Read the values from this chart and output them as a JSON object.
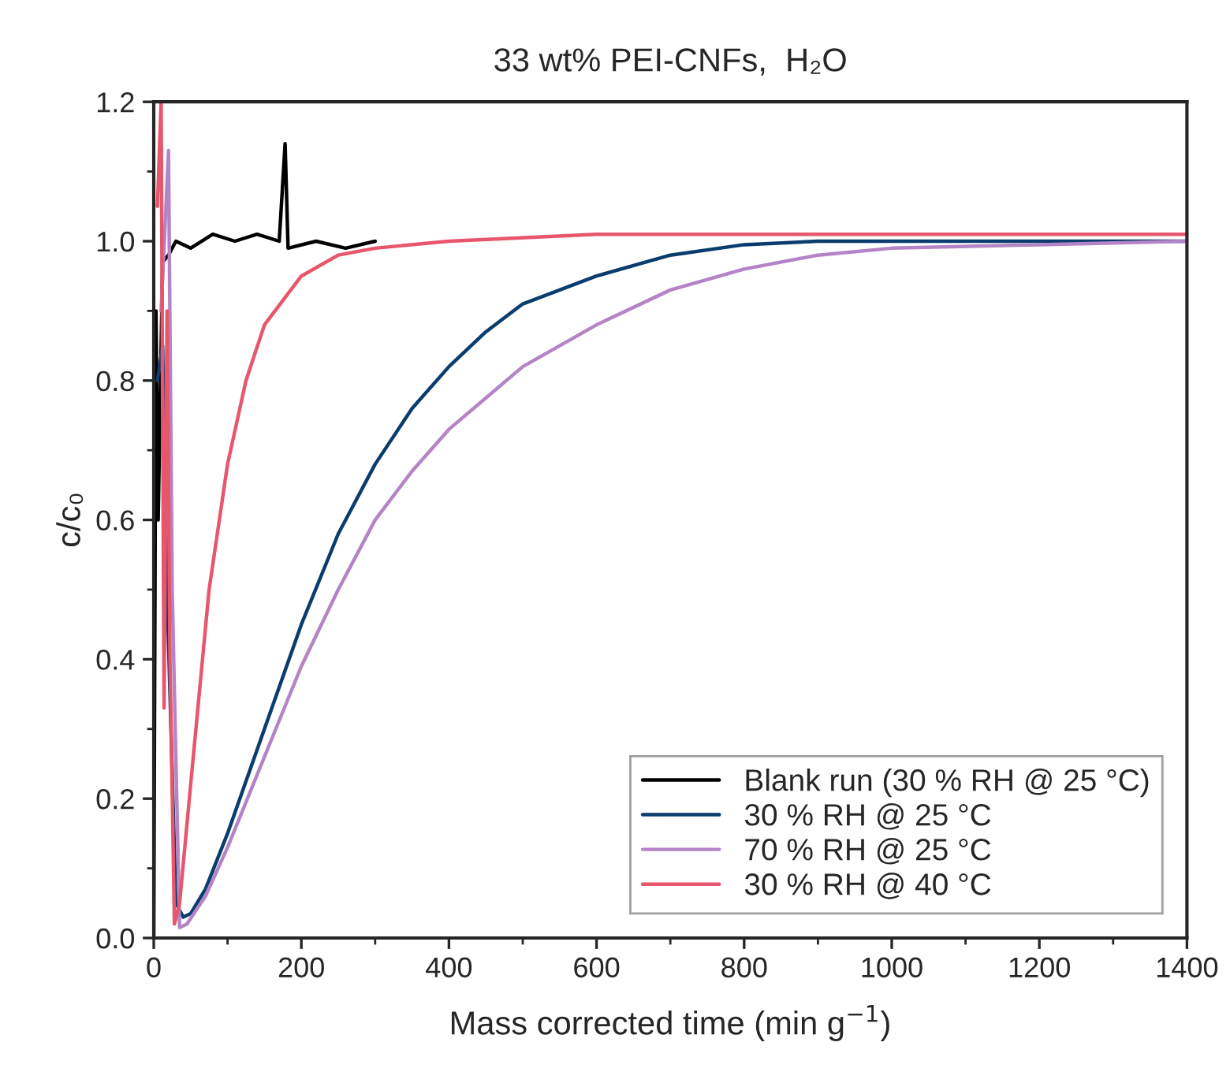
{
  "chart_data": {
    "type": "line",
    "title": "33 wt% PEI-CNFs,  H₂O",
    "xlabel": "Mass corrected time (min g$^{−1}$)",
    "ylabel": "c/c₀",
    "xlim": [
      0,
      1400
    ],
    "xticks": [
      0,
      200,
      400,
      600,
      800,
      1000,
      1200,
      1400
    ],
    "ylim": [
      0,
      1.2
    ],
    "yticks": [
      {
        "value": 0,
        "label": "0.0"
      },
      0.2,
      0.4,
      0.6,
      0.8,
      {
        "value": 1,
        "label": "1.0"
      },
      1.2
    ],
    "grid": false,
    "legend": "bottom right",
    "marker": "none",
    "line_style": "solid",
    "series": [
      {
        "name": "Blank run (30 % RH @ 25 °C)",
        "color": "#000000",
        "x": [
          0,
          3,
          6,
          12,
          20,
          30,
          50,
          80,
          110,
          140,
          170,
          178,
          182,
          220,
          260,
          300
        ],
        "values": [
          0.0,
          0.9,
          0.6,
          0.97,
          0.98,
          1.0,
          0.99,
          1.01,
          1.0,
          1.01,
          1.0,
          1.14,
          0.99,
          1.0,
          0.99,
          1.0
        ]
      },
      {
        "name": "30 % RH @ 25 °C",
        "color": "#0b3c6e",
        "x": [
          5,
          12,
          18,
          30,
          40,
          50,
          70,
          100,
          150,
          200,
          250,
          300,
          350,
          400,
          450,
          500,
          600,
          700,
          800,
          900,
          1000,
          1400
        ],
        "values": [
          0.8,
          0.85,
          0.5,
          0.05,
          0.03,
          0.035,
          0.07,
          0.15,
          0.3,
          0.45,
          0.58,
          0.68,
          0.76,
          0.82,
          0.87,
          0.91,
          0.95,
          0.98,
          0.995,
          1.0,
          1.0,
          1.0
        ]
      },
      {
        "name": "70 % RH @ 25 °C",
        "color": "#b584c6",
        "x": [
          10,
          20,
          25,
          35,
          45,
          70,
          100,
          150,
          200,
          250,
          300,
          350,
          400,
          500,
          600,
          700,
          800,
          900,
          1000,
          1200,
          1400
        ],
        "values": [
          0.9,
          1.13,
          0.5,
          0.015,
          0.02,
          0.06,
          0.13,
          0.26,
          0.39,
          0.5,
          0.6,
          0.67,
          0.73,
          0.82,
          0.88,
          0.93,
          0.96,
          0.98,
          0.99,
          0.995,
          1.0
        ]
      },
      {
        "name": "30 % RH @ 40 °C",
        "color": "#e8566c",
        "x": [
          5,
          10,
          14,
          18,
          22,
          28,
          35,
          50,
          75,
          100,
          125,
          150,
          200,
          250,
          300,
          400,
          600,
          1400
        ],
        "values": [
          1.05,
          1.2,
          0.33,
          0.9,
          0.4,
          0.02,
          0.05,
          0.22,
          0.5,
          0.68,
          0.8,
          0.88,
          0.95,
          0.98,
          0.99,
          1.0,
          1.01,
          1.01
        ]
      }
    ]
  }
}
